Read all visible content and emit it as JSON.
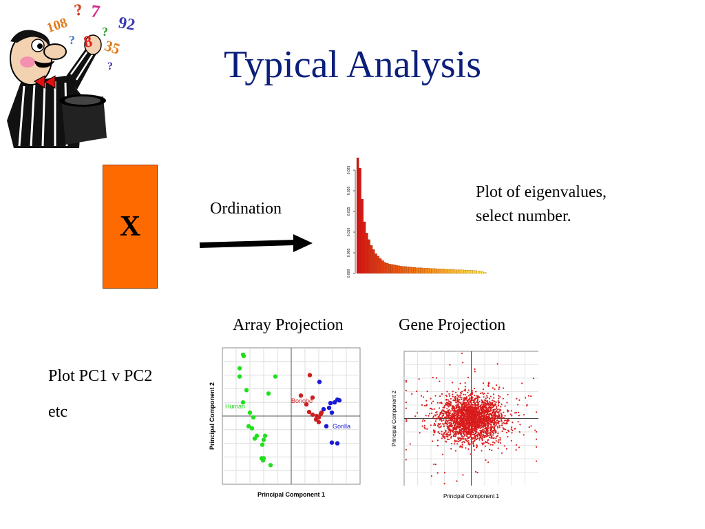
{
  "slide": {
    "title": "Typical Analysis",
    "matrix_label": "X",
    "ordination_label": "Ordination",
    "eigen_caption_line1": "Plot of eigenvalues,",
    "eigen_caption_line2": "select number.",
    "array_projection_label": "Array Projection",
    "gene_projection_label": "Gene Projection",
    "pc_note": "Plot PC1 v PC2",
    "etc_note": "etc"
  },
  "clipart": {
    "icon": "magician-with-top-hat-icon",
    "floating_text": [
      "?",
      "7",
      "108",
      "92",
      "?",
      "8",
      "35",
      "?",
      "?"
    ]
  },
  "colors": {
    "title": "#0b1f7a",
    "matrix_fill": "#ff6a00",
    "human": "#22e01e",
    "bonobo": "#cc1f1f",
    "gorilla": "#1a1ad6",
    "gene_points": "#d81c1c"
  },
  "chart_data": [
    {
      "type": "bar",
      "ylim": [
        0,
        0.028
      ],
      "ytick_labels": [
        "0.000",
        "0.005",
        "0.010",
        "0.015",
        "0.020",
        "0.025"
      ],
      "yticks": [
        0,
        0.005,
        0.01,
        0.015,
        0.02,
        0.025
      ],
      "values": [
        0.028,
        0.0255,
        0.018,
        0.0125,
        0.0098,
        0.0082,
        0.0068,
        0.0058,
        0.0048,
        0.0042,
        0.0036,
        0.0031,
        0.0027,
        0.0025,
        0.0023,
        0.0022,
        0.0021,
        0.002,
        0.0019,
        0.0018,
        0.0017,
        0.0017,
        0.0016,
        0.0016,
        0.0015,
        0.0015,
        0.0014,
        0.0014,
        0.0014,
        0.0013,
        0.0013,
        0.0013,
        0.0012,
        0.0012,
        0.0012,
        0.0011,
        0.0011,
        0.0011,
        0.0011,
        0.001,
        0.001,
        0.001,
        0.001,
        0.0009,
        0.0009,
        0.0009,
        0.0009,
        0.0008,
        0.0008,
        0.0008,
        0.0008,
        0.0007,
        0.0007,
        0.0006,
        0.0006,
        0.0004,
        0.0003
      ],
      "grid": false,
      "legend": "none"
    },
    {
      "type": "scatter",
      "xlabel": "Principal Component 1",
      "ylabel": "Principal Component 2",
      "xlim": [
        -1,
        1
      ],
      "ylim": [
        -1,
        1
      ],
      "grid": true,
      "series": [
        {
          "name": "Human",
          "color": "#22e01e",
          "points": [
            [
              -0.7,
              0.9
            ],
            [
              -0.69,
              0.88
            ],
            [
              -0.75,
              0.7
            ],
            [
              -0.75,
              0.58
            ],
            [
              -0.23,
              0.58
            ],
            [
              -0.65,
              0.38
            ],
            [
              -0.33,
              0.33
            ],
            [
              -0.7,
              0.2
            ],
            [
              -0.6,
              0.05
            ],
            [
              -0.55,
              -0.02
            ],
            [
              -0.62,
              -0.15
            ],
            [
              -0.57,
              -0.18
            ],
            [
              -0.5,
              -0.29
            ],
            [
              -0.38,
              -0.29
            ],
            [
              -0.53,
              -0.33
            ],
            [
              -0.4,
              -0.35
            ],
            [
              -0.42,
              -0.42
            ],
            [
              -0.4,
              -0.62
            ],
            [
              -0.43,
              -0.62
            ],
            [
              -0.41,
              -0.65
            ],
            [
              -0.3,
              -0.72
            ]
          ]
        },
        {
          "name": "Bonobo",
          "color": "#cc1f1f",
          "points": [
            [
              0.27,
              0.6
            ],
            [
              0.31,
              0.27
            ],
            [
              0.14,
              0.3
            ],
            [
              0.22,
              0.17
            ],
            [
              0.26,
              0.06
            ],
            [
              0.31,
              0.02
            ],
            [
              0.37,
              0.0
            ],
            [
              0.4,
              -0.02
            ],
            [
              0.44,
              0.05
            ],
            [
              0.36,
              -0.05
            ],
            [
              0.4,
              -0.09
            ],
            [
              0.43,
              0.03
            ]
          ]
        },
        {
          "name": "Gorilla",
          "color": "#1a1ad6",
          "points": [
            [
              0.41,
              0.5
            ],
            [
              0.67,
              0.24
            ],
            [
              0.63,
              0.2
            ],
            [
              0.57,
              0.19
            ],
            [
              0.7,
              0.23
            ],
            [
              0.55,
              0.12
            ],
            [
              0.59,
              0.05
            ],
            [
              0.47,
              0.1
            ],
            [
              0.51,
              -0.15
            ],
            [
              0.59,
              -0.39
            ],
            [
              0.67,
              -0.4
            ]
          ]
        }
      ]
    },
    {
      "type": "scatter",
      "xlabel": "Principal Component 1",
      "ylabel": "Principal Component 2",
      "xlim": [
        -1,
        1
      ],
      "ylim": [
        -1,
        1
      ],
      "grid": true,
      "series": [
        {
          "color": "#d81c1c",
          "cluster_center": [
            0,
            0
          ],
          "cluster_spread": [
            0.22,
            0.16
          ],
          "point_count": 2400
        }
      ]
    }
  ]
}
